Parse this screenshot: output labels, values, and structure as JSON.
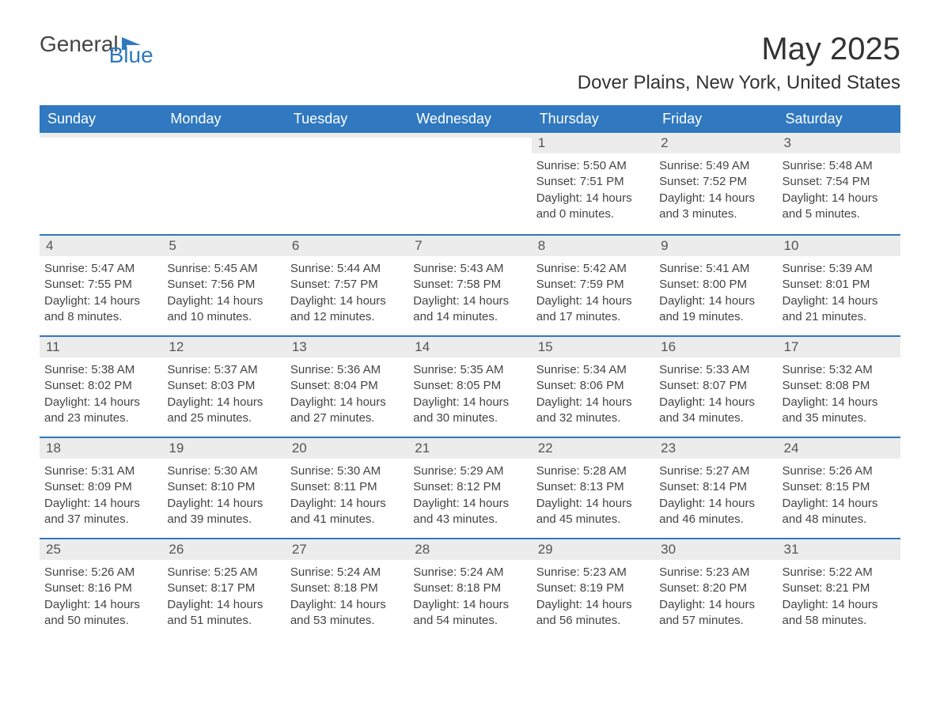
{
  "logo": {
    "text1": "General",
    "text2": "Blue",
    "icon_color": "#2f79bf"
  },
  "title": "May 2025",
  "location": "Dover Plains, New York, United States",
  "header_bg": "#3078bf",
  "header_text_color": "#ffffff",
  "daynum_bg": "#ececec",
  "divider_color": "#3078bf",
  "body_bg": "#ffffff",
  "text_color": "#333333",
  "weekdays": [
    "Sunday",
    "Monday",
    "Tuesday",
    "Wednesday",
    "Thursday",
    "Friday",
    "Saturday"
  ],
  "weeks": [
    [
      {
        "day": "",
        "sunrise": "",
        "sunset": "",
        "daylight1": "",
        "daylight2": ""
      },
      {
        "day": "",
        "sunrise": "",
        "sunset": "",
        "daylight1": "",
        "daylight2": ""
      },
      {
        "day": "",
        "sunrise": "",
        "sunset": "",
        "daylight1": "",
        "daylight2": ""
      },
      {
        "day": "",
        "sunrise": "",
        "sunset": "",
        "daylight1": "",
        "daylight2": ""
      },
      {
        "day": "1",
        "sunrise": "Sunrise: 5:50 AM",
        "sunset": "Sunset: 7:51 PM",
        "daylight1": "Daylight: 14 hours",
        "daylight2": "and 0 minutes."
      },
      {
        "day": "2",
        "sunrise": "Sunrise: 5:49 AM",
        "sunset": "Sunset: 7:52 PM",
        "daylight1": "Daylight: 14 hours",
        "daylight2": "and 3 minutes."
      },
      {
        "day": "3",
        "sunrise": "Sunrise: 5:48 AM",
        "sunset": "Sunset: 7:54 PM",
        "daylight1": "Daylight: 14 hours",
        "daylight2": "and 5 minutes."
      }
    ],
    [
      {
        "day": "4",
        "sunrise": "Sunrise: 5:47 AM",
        "sunset": "Sunset: 7:55 PM",
        "daylight1": "Daylight: 14 hours",
        "daylight2": "and 8 minutes."
      },
      {
        "day": "5",
        "sunrise": "Sunrise: 5:45 AM",
        "sunset": "Sunset: 7:56 PM",
        "daylight1": "Daylight: 14 hours",
        "daylight2": "and 10 minutes."
      },
      {
        "day": "6",
        "sunrise": "Sunrise: 5:44 AM",
        "sunset": "Sunset: 7:57 PM",
        "daylight1": "Daylight: 14 hours",
        "daylight2": "and 12 minutes."
      },
      {
        "day": "7",
        "sunrise": "Sunrise: 5:43 AM",
        "sunset": "Sunset: 7:58 PM",
        "daylight1": "Daylight: 14 hours",
        "daylight2": "and 14 minutes."
      },
      {
        "day": "8",
        "sunrise": "Sunrise: 5:42 AM",
        "sunset": "Sunset: 7:59 PM",
        "daylight1": "Daylight: 14 hours",
        "daylight2": "and 17 minutes."
      },
      {
        "day": "9",
        "sunrise": "Sunrise: 5:41 AM",
        "sunset": "Sunset: 8:00 PM",
        "daylight1": "Daylight: 14 hours",
        "daylight2": "and 19 minutes."
      },
      {
        "day": "10",
        "sunrise": "Sunrise: 5:39 AM",
        "sunset": "Sunset: 8:01 PM",
        "daylight1": "Daylight: 14 hours",
        "daylight2": "and 21 minutes."
      }
    ],
    [
      {
        "day": "11",
        "sunrise": "Sunrise: 5:38 AM",
        "sunset": "Sunset: 8:02 PM",
        "daylight1": "Daylight: 14 hours",
        "daylight2": "and 23 minutes."
      },
      {
        "day": "12",
        "sunrise": "Sunrise: 5:37 AM",
        "sunset": "Sunset: 8:03 PM",
        "daylight1": "Daylight: 14 hours",
        "daylight2": "and 25 minutes."
      },
      {
        "day": "13",
        "sunrise": "Sunrise: 5:36 AM",
        "sunset": "Sunset: 8:04 PM",
        "daylight1": "Daylight: 14 hours",
        "daylight2": "and 27 minutes."
      },
      {
        "day": "14",
        "sunrise": "Sunrise: 5:35 AM",
        "sunset": "Sunset: 8:05 PM",
        "daylight1": "Daylight: 14 hours",
        "daylight2": "and 30 minutes."
      },
      {
        "day": "15",
        "sunrise": "Sunrise: 5:34 AM",
        "sunset": "Sunset: 8:06 PM",
        "daylight1": "Daylight: 14 hours",
        "daylight2": "and 32 minutes."
      },
      {
        "day": "16",
        "sunrise": "Sunrise: 5:33 AM",
        "sunset": "Sunset: 8:07 PM",
        "daylight1": "Daylight: 14 hours",
        "daylight2": "and 34 minutes."
      },
      {
        "day": "17",
        "sunrise": "Sunrise: 5:32 AM",
        "sunset": "Sunset: 8:08 PM",
        "daylight1": "Daylight: 14 hours",
        "daylight2": "and 35 minutes."
      }
    ],
    [
      {
        "day": "18",
        "sunrise": "Sunrise: 5:31 AM",
        "sunset": "Sunset: 8:09 PM",
        "daylight1": "Daylight: 14 hours",
        "daylight2": "and 37 minutes."
      },
      {
        "day": "19",
        "sunrise": "Sunrise: 5:30 AM",
        "sunset": "Sunset: 8:10 PM",
        "daylight1": "Daylight: 14 hours",
        "daylight2": "and 39 minutes."
      },
      {
        "day": "20",
        "sunrise": "Sunrise: 5:30 AM",
        "sunset": "Sunset: 8:11 PM",
        "daylight1": "Daylight: 14 hours",
        "daylight2": "and 41 minutes."
      },
      {
        "day": "21",
        "sunrise": "Sunrise: 5:29 AM",
        "sunset": "Sunset: 8:12 PM",
        "daylight1": "Daylight: 14 hours",
        "daylight2": "and 43 minutes."
      },
      {
        "day": "22",
        "sunrise": "Sunrise: 5:28 AM",
        "sunset": "Sunset: 8:13 PM",
        "daylight1": "Daylight: 14 hours",
        "daylight2": "and 45 minutes."
      },
      {
        "day": "23",
        "sunrise": "Sunrise: 5:27 AM",
        "sunset": "Sunset: 8:14 PM",
        "daylight1": "Daylight: 14 hours",
        "daylight2": "and 46 minutes."
      },
      {
        "day": "24",
        "sunrise": "Sunrise: 5:26 AM",
        "sunset": "Sunset: 8:15 PM",
        "daylight1": "Daylight: 14 hours",
        "daylight2": "and 48 minutes."
      }
    ],
    [
      {
        "day": "25",
        "sunrise": "Sunrise: 5:26 AM",
        "sunset": "Sunset: 8:16 PM",
        "daylight1": "Daylight: 14 hours",
        "daylight2": "and 50 minutes."
      },
      {
        "day": "26",
        "sunrise": "Sunrise: 5:25 AM",
        "sunset": "Sunset: 8:17 PM",
        "daylight1": "Daylight: 14 hours",
        "daylight2": "and 51 minutes."
      },
      {
        "day": "27",
        "sunrise": "Sunrise: 5:24 AM",
        "sunset": "Sunset: 8:18 PM",
        "daylight1": "Daylight: 14 hours",
        "daylight2": "and 53 minutes."
      },
      {
        "day": "28",
        "sunrise": "Sunrise: 5:24 AM",
        "sunset": "Sunset: 8:18 PM",
        "daylight1": "Daylight: 14 hours",
        "daylight2": "and 54 minutes."
      },
      {
        "day": "29",
        "sunrise": "Sunrise: 5:23 AM",
        "sunset": "Sunset: 8:19 PM",
        "daylight1": "Daylight: 14 hours",
        "daylight2": "and 56 minutes."
      },
      {
        "day": "30",
        "sunrise": "Sunrise: 5:23 AM",
        "sunset": "Sunset: 8:20 PM",
        "daylight1": "Daylight: 14 hours",
        "daylight2": "and 57 minutes."
      },
      {
        "day": "31",
        "sunrise": "Sunrise: 5:22 AM",
        "sunset": "Sunset: 8:21 PM",
        "daylight1": "Daylight: 14 hours",
        "daylight2": "and 58 minutes."
      }
    ]
  ]
}
